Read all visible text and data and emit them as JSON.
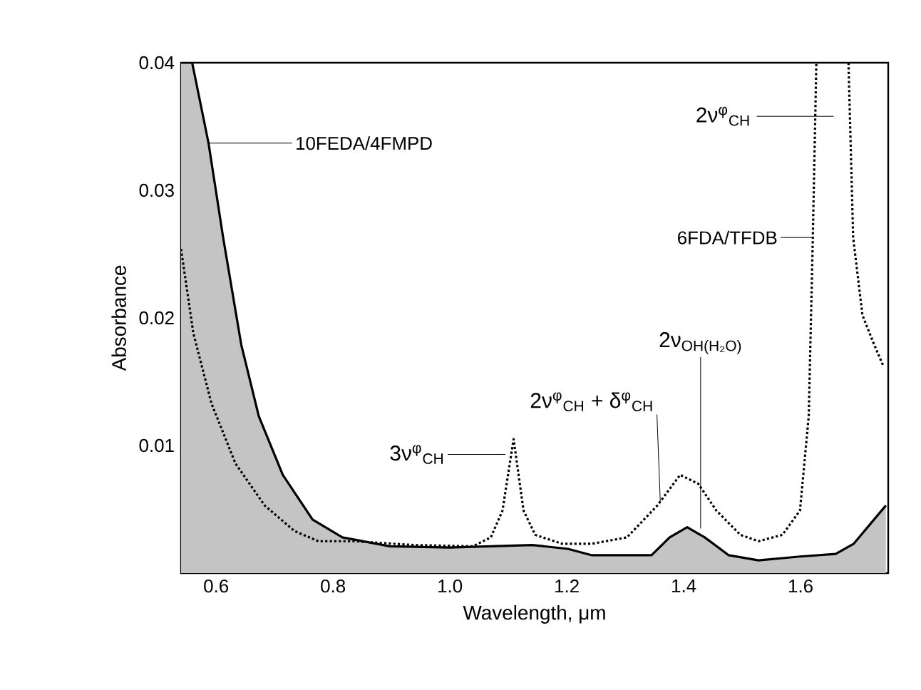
{
  "chart_data": {
    "type": "line",
    "xlabel": "Wavelength, μm",
    "ylabel": "Absorbance",
    "xlim": [
      0.54,
      1.75
    ],
    "ylim": [
      0,
      0.04
    ],
    "xticks": [
      {
        "value": 0.6,
        "label": "0.6"
      },
      {
        "value": 0.8,
        "label": "0.8"
      },
      {
        "value": 1.0,
        "label": "1.0"
      },
      {
        "value": 1.2,
        "label": "1.2"
      },
      {
        "value": 1.4,
        "label": "1.4"
      },
      {
        "value": 1.6,
        "label": "1.6"
      }
    ],
    "yticks": [
      0.01,
      0.02,
      0.03,
      0.04
    ],
    "series": [
      {
        "name": "10FEDA/4FMPD",
        "type": "area",
        "color": "#c4c4c4",
        "line_style": "solid",
        "x": [
          0.54,
          0.559,
          0.587,
          0.612,
          0.643,
          0.673,
          0.714,
          0.765,
          0.816,
          0.897,
          0.999,
          1.141,
          1.202,
          1.243,
          1.345,
          1.376,
          1.406,
          1.436,
          1.477,
          1.528,
          1.599,
          1.66,
          1.691,
          1.746
        ],
        "values": [
          0.04,
          0.04,
          0.0337,
          0.0263,
          0.0179,
          0.0123,
          0.0077,
          0.0042,
          0.0028,
          0.0021,
          0.002,
          0.0022,
          0.0019,
          0.0014,
          0.0014,
          0.0028,
          0.0036,
          0.0028,
          0.0014,
          0.001,
          0.0013,
          0.0015,
          0.0023,
          0.0053
        ]
      },
      {
        "name": "6FDA/TFDB",
        "color": "#000000",
        "line_style": "dotted",
        "x": [
          0.54,
          0.561,
          0.592,
          0.633,
          0.683,
          0.734,
          0.775,
          0.836,
          0.938,
          1.039,
          1.07,
          1.09,
          1.109,
          1.126,
          1.146,
          1.192,
          1.243,
          1.303,
          1.355,
          1.394,
          1.425,
          1.456,
          1.497,
          1.528,
          1.569,
          1.599,
          1.614,
          1.621,
          1.627,
          1.655,
          1.682,
          1.69,
          1.706,
          1.726,
          1.741
        ],
        "values": [
          0.0254,
          0.0188,
          0.0133,
          0.0086,
          0.0053,
          0.0033,
          0.0025,
          0.0025,
          0.0022,
          0.0021,
          0.0028,
          0.0049,
          0.0105,
          0.0049,
          0.003,
          0.0023,
          0.0023,
          0.0028,
          0.0053,
          0.0077,
          0.007,
          0.0049,
          0.003,
          0.0025,
          0.003,
          0.0049,
          0.0123,
          0.0263,
          0.04,
          null,
          0.04,
          0.0263,
          0.0202,
          0.0179,
          0.0163
        ]
      }
    ],
    "annotations": [
      {
        "text": "3ν$^{φ}$$_{CH}$",
        "x": 1.095,
        "y": 0.0093
      },
      {
        "text": "2ν$^{φ}$$_{CH}$ + δ$^{φ}$$_{CH}$",
        "x": 1.36,
        "y": 0.0056
      },
      {
        "text": "2ν$_{OH(H₂O)}$",
        "x": 1.429,
        "y": 0.0035
      },
      "2ν$^{φ}$$_{CH}$"
    ]
  }
}
